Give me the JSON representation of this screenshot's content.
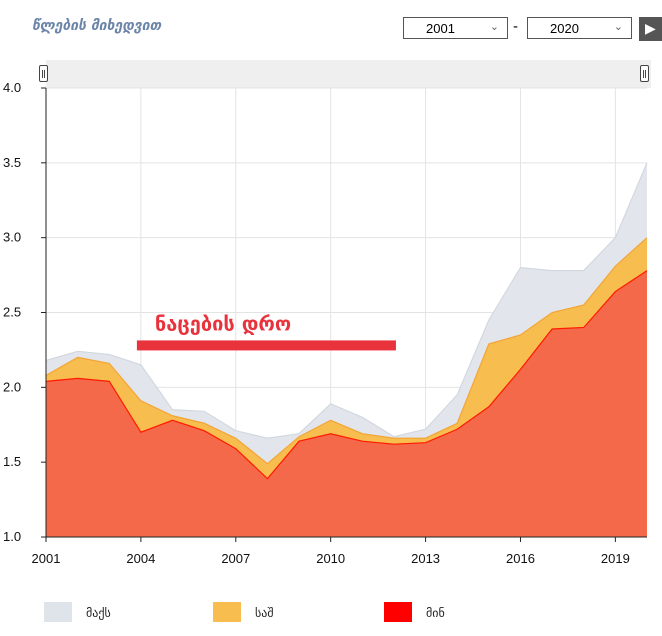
{
  "header": {
    "title": "წლების მიხედვით",
    "year_from": "2001",
    "year_to": "2020",
    "separator": "-",
    "play_symbol": "▶"
  },
  "chart_data": {
    "type": "area",
    "x": [
      2001,
      2002,
      2003,
      2004,
      2005,
      2006,
      2007,
      2008,
      2009,
      2010,
      2011,
      2012,
      2013,
      2014,
      2015,
      2016,
      2017,
      2018,
      2019,
      2020
    ],
    "xticks": [
      "2001",
      "2004",
      "2007",
      "2010",
      "2013",
      "2016",
      "2019"
    ],
    "yticks": [
      "1.0",
      "1.5",
      "2.0",
      "2.5",
      "3.0",
      "3.5",
      "4.0"
    ],
    "ylim": [
      1.0,
      4.0
    ],
    "xlim": [
      2001,
      2020
    ],
    "series": [
      {
        "name": "მაქს",
        "color": "#dfe3ea",
        "values": [
          2.18,
          2.24,
          2.22,
          2.15,
          1.85,
          1.84,
          1.71,
          1.66,
          1.69,
          1.89,
          1.8,
          1.67,
          1.72,
          1.95,
          2.45,
          2.8,
          2.78,
          2.78,
          3.0,
          3.5
        ]
      },
      {
        "name": "საშ",
        "color": "#f8bd4f",
        "values": [
          2.08,
          2.2,
          2.16,
          1.91,
          1.81,
          1.76,
          1.66,
          1.49,
          1.67,
          1.78,
          1.69,
          1.66,
          1.66,
          1.76,
          2.29,
          2.35,
          2.5,
          2.55,
          2.81,
          3.0
        ]
      },
      {
        "name": "მინ",
        "color": "#ff0000",
        "values": [
          2.04,
          2.06,
          2.04,
          1.7,
          1.78,
          1.71,
          1.59,
          1.39,
          1.64,
          1.69,
          1.64,
          1.62,
          1.63,
          1.72,
          1.87,
          2.12,
          2.39,
          2.4,
          2.64,
          2.78
        ]
      }
    ],
    "annotation": {
      "label": "ნაცების დრო",
      "from": 2004,
      "to": 2012,
      "y": 2.28,
      "color": "#e8323c"
    }
  }
}
